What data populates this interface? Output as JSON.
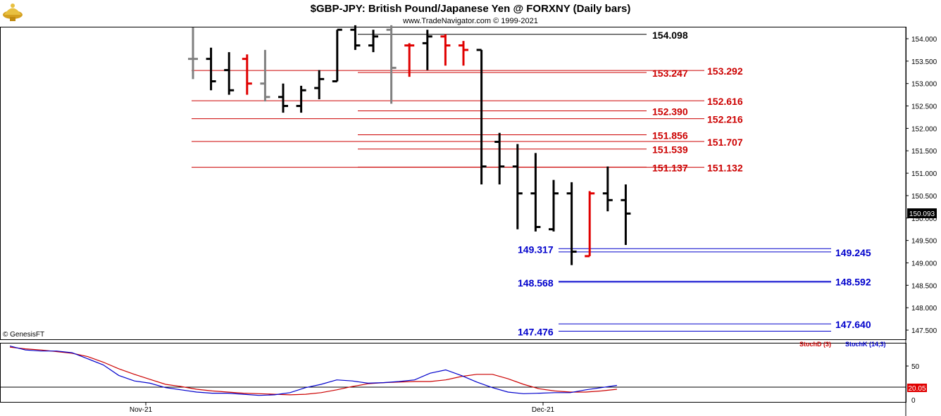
{
  "header": {
    "title": "$GBP-JPY:  British Pound/Japanese Yen @ FORXNY  (Daily bars)",
    "subtitle": "www.TradeNavigator.com © 1999-2021",
    "logo_icon": "genie-lamp-icon",
    "copyright": "© GenesisFT"
  },
  "colors": {
    "up": "#000000",
    "down_red": "#e00000",
    "neutral_gray": "#808080",
    "resistance": "#cc0000",
    "support": "#0000cc",
    "black_line": "#000000",
    "stoch_d": "#cc0000",
    "stoch_k": "#0000cc"
  },
  "chart_data": {
    "type": "ohlc",
    "y_axis": {
      "ticks": [
        "154.000",
        "153.500",
        "153.000",
        "152.500",
        "152.000",
        "151.500",
        "151.000",
        "150.500",
        "150.000",
        "149.500",
        "149.000",
        "148.500",
        "148.000",
        "147.500"
      ],
      "ylim": [
        147.3,
        154.25
      ]
    },
    "last_price": "150.093",
    "x_labels": [
      "Nov-21",
      "Dec-21"
    ],
    "bars": [
      {
        "o": 153.55,
        "h": 154.25,
        "l": 153.1,
        "c": 153.55,
        "color": "gray"
      },
      {
        "o": 153.55,
        "h": 153.8,
        "l": 152.85,
        "c": 153.05,
        "color": "black"
      },
      {
        "o": 153.3,
        "h": 153.7,
        "l": 152.75,
        "c": 152.85,
        "color": "black"
      },
      {
        "o": 153.55,
        "h": 153.65,
        "l": 152.75,
        "c": 153.0,
        "color": "red"
      },
      {
        "o": 153.0,
        "h": 153.75,
        "l": 152.6,
        "c": 152.7,
        "color": "gray"
      },
      {
        "o": 152.7,
        "h": 153.0,
        "l": 152.35,
        "c": 152.5,
        "color": "black"
      },
      {
        "o": 152.5,
        "h": 152.95,
        "l": 152.35,
        "c": 152.85,
        "color": "black"
      },
      {
        "o": 152.9,
        "h": 153.3,
        "l": 152.65,
        "c": 153.1,
        "color": "black"
      },
      {
        "o": 153.05,
        "h": 154.2,
        "l": 153.05,
        "c": 154.2,
        "color": "black"
      },
      {
        "o": 154.2,
        "h": 154.3,
        "l": 153.75,
        "c": 153.85,
        "color": "black"
      },
      {
        "o": 153.85,
        "h": 154.2,
        "l": 153.7,
        "c": 154.05,
        "color": "black"
      },
      {
        "o": 154.2,
        "h": 154.3,
        "l": 152.55,
        "c": 153.35,
        "color": "gray"
      },
      {
        "o": 153.85,
        "h": 153.9,
        "l": 153.15,
        "c": 153.85,
        "color": "red"
      },
      {
        "o": 153.9,
        "h": 154.2,
        "l": 153.3,
        "c": 154.05,
        "color": "black"
      },
      {
        "o": 154.05,
        "h": 154.1,
        "l": 153.4,
        "c": 153.85,
        "color": "red"
      },
      {
        "o": 153.85,
        "h": 153.95,
        "l": 153.4,
        "c": 153.75,
        "color": "red"
      },
      {
        "o": 153.75,
        "h": 153.75,
        "l": 150.75,
        "c": 151.15,
        "color": "black"
      },
      {
        "o": 151.7,
        "h": 151.9,
        "l": 150.75,
        "c": 151.15,
        "color": "black"
      },
      {
        "o": 151.15,
        "h": 151.65,
        "l": 149.75,
        "c": 150.55,
        "color": "black"
      },
      {
        "o": 150.55,
        "h": 151.45,
        "l": 149.7,
        "c": 149.8,
        "color": "black"
      },
      {
        "o": 149.75,
        "h": 150.85,
        "l": 149.7,
        "c": 150.55,
        "color": "black"
      },
      {
        "o": 150.55,
        "h": 150.8,
        "l": 148.95,
        "c": 149.25,
        "color": "black"
      },
      {
        "o": 149.15,
        "h": 150.6,
        "l": 149.15,
        "c": 150.55,
        "color": "red"
      },
      {
        "o": 150.55,
        "h": 151.15,
        "l": 150.15,
        "c": 150.4,
        "color": "black"
      },
      {
        "o": 150.4,
        "h": 150.75,
        "l": 149.4,
        "c": 150.1,
        "color": "black"
      }
    ],
    "levels": [
      {
        "label": "154.098",
        "value": 154.098,
        "color": "black",
        "side": "middle"
      },
      {
        "label": "153.247",
        "value": 153.247,
        "color": "red",
        "side": "middle"
      },
      {
        "label": "153.292",
        "value": 153.292,
        "color": "red",
        "side": "right"
      },
      {
        "label": "152.616",
        "value": 152.616,
        "color": "red",
        "side": "right"
      },
      {
        "label": "152.390",
        "value": 152.39,
        "color": "red",
        "side": "middle"
      },
      {
        "label": "152.216",
        "value": 152.216,
        "color": "red",
        "side": "right"
      },
      {
        "label": "151.856",
        "value": 151.856,
        "color": "red",
        "side": "middle"
      },
      {
        "label": "151.707",
        "value": 151.707,
        "color": "red",
        "side": "right"
      },
      {
        "label": "151.539",
        "value": 151.539,
        "color": "red",
        "side": "middle"
      },
      {
        "label": "151.137",
        "value": 151.137,
        "color": "red",
        "side": "middle"
      },
      {
        "label": "151.132",
        "value": 151.132,
        "color": "red",
        "side": "right"
      },
      {
        "label": "149.317",
        "value": 149.317,
        "color": "blue",
        "side": "left"
      },
      {
        "label": "149.245",
        "value": 149.245,
        "color": "blue",
        "side": "right"
      },
      {
        "label": "148.568",
        "value": 148.568,
        "color": "blue",
        "side": "left"
      },
      {
        "label": "148.592",
        "value": 148.592,
        "color": "blue",
        "side": "right"
      },
      {
        "label": "147.476",
        "value": 147.476,
        "color": "blue",
        "side": "left"
      },
      {
        "label": "147.640",
        "value": 147.64,
        "color": "blue",
        "side": "right"
      }
    ],
    "indicator": {
      "legend_d": "StochD (3)",
      "legend_k": "StochK (14,3)",
      "ticks": [
        "50",
        "0"
      ],
      "ylim": [
        0,
        100
      ],
      "last_value": "20.05",
      "stoch_d": [
        95,
        92,
        90,
        87,
        84,
        78,
        68,
        56,
        46,
        37,
        28,
        24,
        19,
        16,
        14,
        12,
        11,
        10,
        9,
        10,
        13,
        18,
        24,
        29,
        31,
        32,
        33,
        33,
        36,
        42,
        46,
        46,
        38,
        28,
        20,
        16,
        14,
        14,
        16,
        19
      ],
      "stoch_k": [
        97,
        90,
        88,
        88,
        85,
        74,
        63,
        44,
        34,
        30,
        22,
        18,
        14,
        12,
        12,
        10,
        8,
        9,
        13,
        22,
        28,
        36,
        34,
        30,
        31,
        33,
        36,
        48,
        54,
        44,
        32,
        22,
        14,
        11,
        12,
        13,
        13,
        18,
        22,
        26
      ]
    }
  }
}
